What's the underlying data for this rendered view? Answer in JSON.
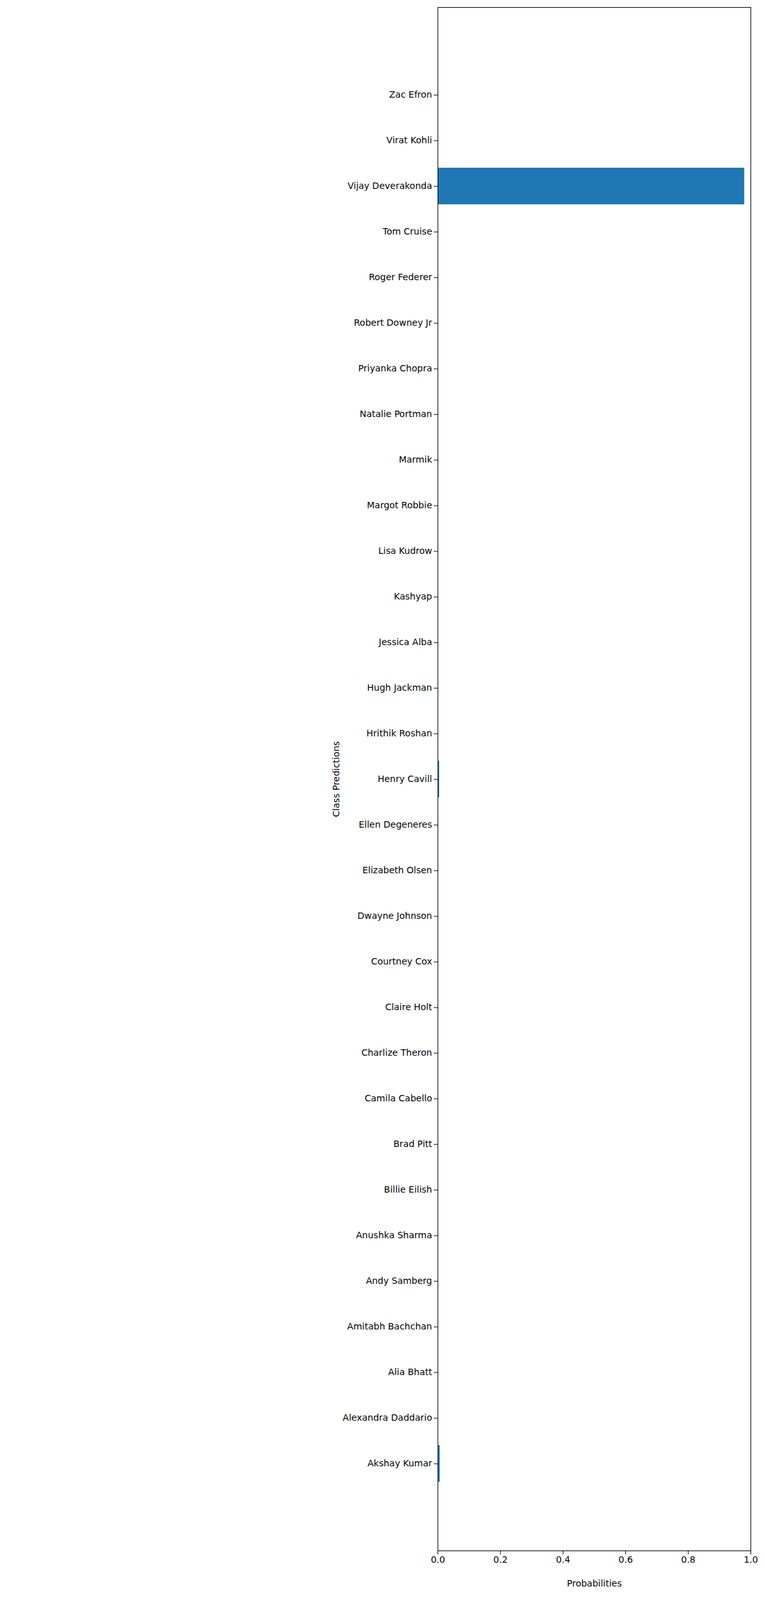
{
  "chart_data": {
    "type": "bar",
    "orientation": "horizontal",
    "categories": [
      "Zac Efron",
      "Virat Kohli",
      "Vijay Deverakonda",
      "Tom Cruise",
      "Roger Federer",
      "Robert Downey Jr",
      "Priyanka Chopra",
      "Natalie Portman",
      "Marmik",
      "Margot Robbie",
      "Lisa Kudrow",
      "Kashyap",
      "Jessica Alba",
      "Hugh Jackman",
      "Hrithik Roshan",
      "Henry Cavill",
      "Ellen Degeneres",
      "Elizabeth Olsen",
      "Dwayne Johnson",
      "Courtney Cox",
      "Claire Holt",
      "Charlize Theron",
      "Camila Cabello",
      "Brad Pitt",
      "Billie Eilish",
      "Anushka Sharma",
      "Andy Samberg",
      "Amitabh Bachchan",
      "Alia Bhatt",
      "Alexandra Daddario",
      "Akshay Kumar"
    ],
    "values": [
      0,
      0,
      0.98,
      0,
      0,
      0,
      0,
      0,
      0,
      0,
      0,
      0,
      0,
      0,
      0,
      0.005,
      0,
      0,
      0,
      0,
      0,
      0,
      0,
      0,
      0,
      0,
      0,
      0,
      0,
      0,
      0.007
    ],
    "color": "#1f77b4",
    "x_label": "Probabilities",
    "y_label": "Class Predictions",
    "xlim": [
      0,
      1
    ],
    "xticks": [
      {
        "value": 0,
        "label": "0.0"
      },
      {
        "value": 0.2,
        "label": "0.2"
      },
      {
        "value": 0.4,
        "label": "0.4"
      },
      {
        "value": 0.6,
        "label": "0.6"
      },
      {
        "value": 0.8,
        "label": "0.8"
      },
      {
        "value": 1,
        "label": "1.0"
      }
    ],
    "grid": false
  }
}
